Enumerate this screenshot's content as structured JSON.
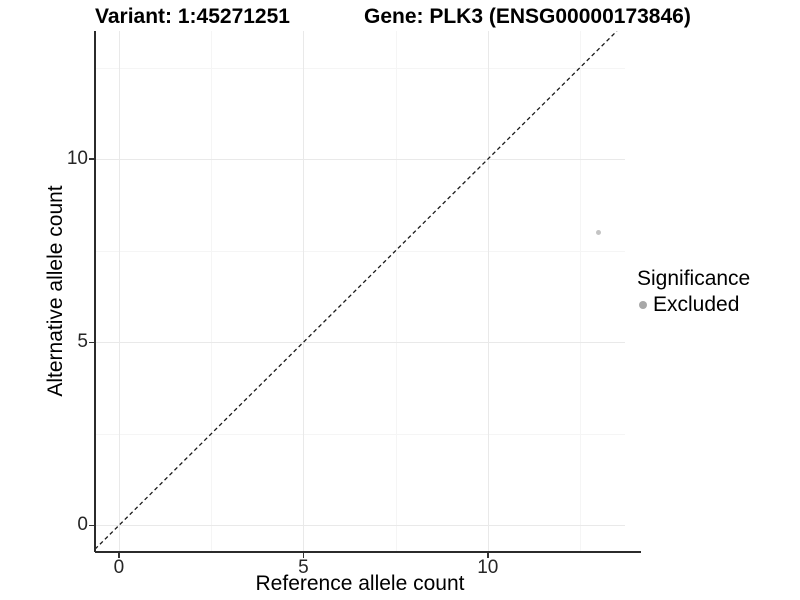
{
  "titles": {
    "variant": "Variant: 1:45271251",
    "gene": "Gene: PLK3 (ENSG00000173846)"
  },
  "legend": {
    "title": "Significance",
    "items": [
      {
        "label": "Excluded",
        "color": "#a8a8a8"
      }
    ]
  },
  "colors": {
    "background": "#ffffff",
    "grid_major": "#e9e9e9",
    "grid_minor": "#f5f5f5",
    "axis_line": "#2b2b2b",
    "tick_text": "#262626",
    "point": "#c4c4c4",
    "identity_line": "#1a1a1a"
  },
  "chart_data": {
    "type": "scatter",
    "title_left": "Variant: 1:45271251",
    "title_right": "Gene: PLK3 (ENSG00000173846)",
    "xlabel": "Reference allele count",
    "ylabel": "Alternative allele count",
    "xlim": [
      -0.65,
      13.72
    ],
    "ylim": [
      -0.7,
      13.5
    ],
    "x_major_ticks": [
      0,
      5,
      10
    ],
    "y_major_ticks": [
      0,
      5,
      10
    ],
    "x_minor_gridlines": [
      2.5,
      7.5,
      12.5
    ],
    "y_minor_gridlines": [
      2.5,
      7.5,
      12.5
    ],
    "grid": true,
    "legend_position": "right",
    "reference_line": {
      "type": "identity",
      "style": "dashed"
    },
    "series": [
      {
        "name": "Excluded",
        "color": "#c4c4c4",
        "points": [
          {
            "x": 13,
            "y": 8
          }
        ]
      }
    ]
  }
}
